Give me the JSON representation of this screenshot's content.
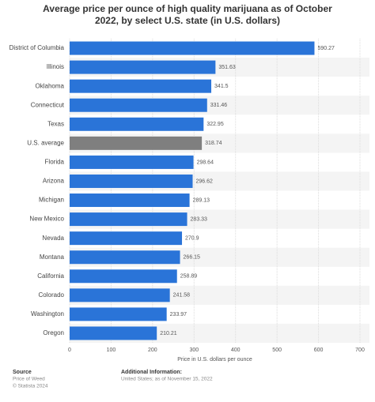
{
  "chart_data": {
    "type": "hbar",
    "title": "Average price per ounce of high quality marijuana as of October 2022, by select U.S. state (in U.S. dollars)",
    "categories": [
      "District of Columbia",
      "Illinois",
      "Oklahoma",
      "Connecticut",
      "Texas",
      "U.S. average",
      "Florida",
      "Arizona",
      "Michigan",
      "New Mexico",
      "Nevada",
      "Montana",
      "California",
      "Colorado",
      "Washington",
      "Oregon"
    ],
    "values": [
      590.27,
      351.63,
      341.5,
      331.46,
      322.95,
      318.74,
      298.64,
      296.62,
      289.13,
      283.33,
      270.9,
      266.15,
      258.89,
      241.58,
      233.97,
      210.21
    ],
    "colors": [
      "#2a74d8",
      "#2a74d8",
      "#2a74d8",
      "#2a74d8",
      "#2a74d8",
      "#7f7f7f",
      "#2a74d8",
      "#2a74d8",
      "#2a74d8",
      "#2a74d8",
      "#2a74d8",
      "#2a74d8",
      "#2a74d8",
      "#2a74d8",
      "#2a74d8",
      "#2a74d8"
    ],
    "xlim": [
      0,
      700
    ],
    "xticks": [
      0,
      100,
      200,
      300,
      400,
      500,
      600,
      700
    ],
    "grid": true,
    "xlabel": "Price in U.S. dollars per ounce",
    "source_heading": "Source",
    "source_lines": [
      "Price of Weed",
      "© Statista 2024"
    ],
    "info_heading": "Additional Information:",
    "info_lines": [
      "United States; as of November 15, 2022"
    ]
  }
}
